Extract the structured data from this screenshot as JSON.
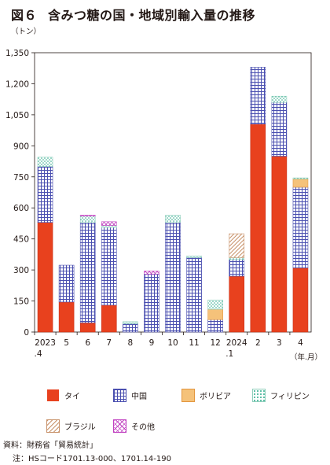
{
  "title": {
    "figure": "図６",
    "text": "含みつ糖の国・地域別輸入量の推移"
  },
  "y_unit": "（トン）",
  "x_unit": "（年.月）",
  "source": "資料：財務省「貿易統計」",
  "note": "注：HSコード1701.13-000、1701.14-190",
  "colors": {
    "thai": "#e8411e",
    "china": "#4a4fb0",
    "bolivia": "#f5a85c",
    "philippines": "#2aaa8a",
    "brazil": "#c8926a",
    "other": "#c040c0"
  },
  "chart_data": {
    "type": "bar",
    "stacked": true,
    "categories": [
      "2023\n.4",
      "5",
      "6",
      "7",
      "8",
      "9",
      "10",
      "11",
      "12",
      "2024\n.1",
      "2",
      "3",
      "4"
    ],
    "ylim": [
      0,
      1350
    ],
    "yticks": [
      "0",
      "150",
      "300",
      "450",
      "600",
      "750",
      "900",
      "1,050",
      "1,200",
      "1,350"
    ],
    "ytick_values": [
      0,
      150,
      300,
      450,
      600,
      750,
      900,
      1050,
      1200,
      1350
    ],
    "legend_position": "bottom",
    "series": [
      {
        "key": "thai",
        "name": "タイ",
        "values": [
          530,
          145,
          45,
          130,
          0,
          0,
          0,
          0,
          0,
          270,
          1005,
          850,
          310
        ]
      },
      {
        "key": "china",
        "name": "中国",
        "values": [
          270,
          178,
          485,
          375,
          40,
          280,
          530,
          360,
          60,
          80,
          275,
          260,
          390
        ]
      },
      {
        "key": "bolivia",
        "name": "ボリビア",
        "values": [
          0,
          0,
          0,
          0,
          0,
          0,
          0,
          0,
          50,
          0,
          0,
          0,
          40
        ]
      },
      {
        "key": "philippines",
        "name": "フィリピン",
        "values": [
          45,
          0,
          30,
          10,
          10,
          0,
          35,
          8,
          45,
          10,
          0,
          30,
          5
        ]
      },
      {
        "key": "brazil",
        "name": "ブラジル",
        "values": [
          0,
          0,
          0,
          0,
          0,
          0,
          0,
          0,
          0,
          115,
          0,
          0,
          0
        ]
      },
      {
        "key": "other",
        "name": "その他",
        "values": [
          0,
          0,
          5,
          18,
          0,
          15,
          0,
          0,
          0,
          0,
          0,
          0,
          0
        ]
      }
    ]
  }
}
